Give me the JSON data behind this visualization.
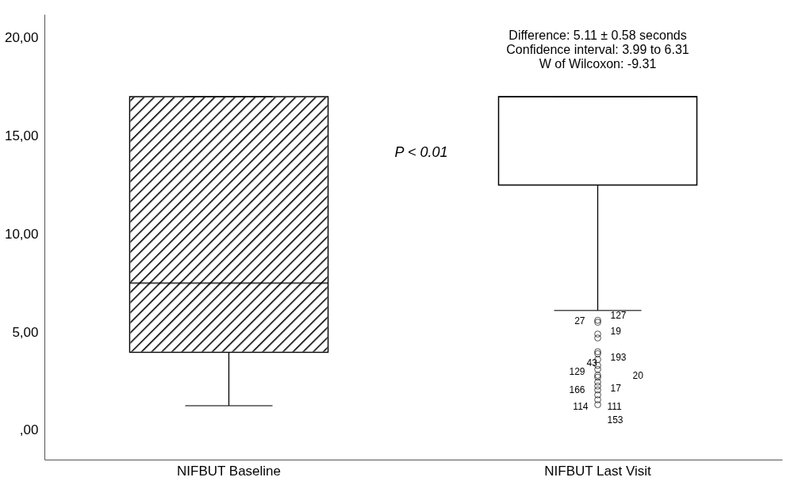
{
  "chart_data": {
    "type": "box",
    "categories": [
      "NIFBUT Baseline",
      "NIFBUT Last Visit"
    ],
    "boxes": [
      {
        "low": 1.25,
        "q1": 3.97,
        "median": 7.5,
        "q3": 17.0,
        "high": 17.0
      },
      {
        "low": 6.1,
        "q1": 12.5,
        "median": 17.0,
        "q3": 17.0,
        "high": 17.0,
        "outliers": [
          5.6,
          5.5,
          4.9,
          4.7,
          4.0,
          3.9,
          3.6,
          3.3,
          3.1,
          2.8,
          2.7,
          2.45,
          2.25,
          2.05,
          1.8,
          1.55,
          1.3
        ]
      }
    ],
    "ylim": [
      -1.5,
      21.2
    ],
    "yticks": [
      {
        "value": 0,
        "label": ",00"
      },
      {
        "value": 5,
        "label": "5,00"
      },
      {
        "value": 10,
        "label": "10,00"
      },
      {
        "value": 15,
        "label": "15,00"
      },
      {
        "value": 20,
        "label": "20,00"
      }
    ],
    "annotations": [
      "P < 0.01",
      "Difference: 5.11 ± 0.58 seconds",
      "Confidence interval: 3.99 to 6.31",
      "W of Wilcoxon: -9.31",
      "127",
      "27",
      "19",
      "193",
      "43",
      "129",
      "20",
      "166",
      "17",
      "114",
      "111",
      "153"
    ]
  }
}
